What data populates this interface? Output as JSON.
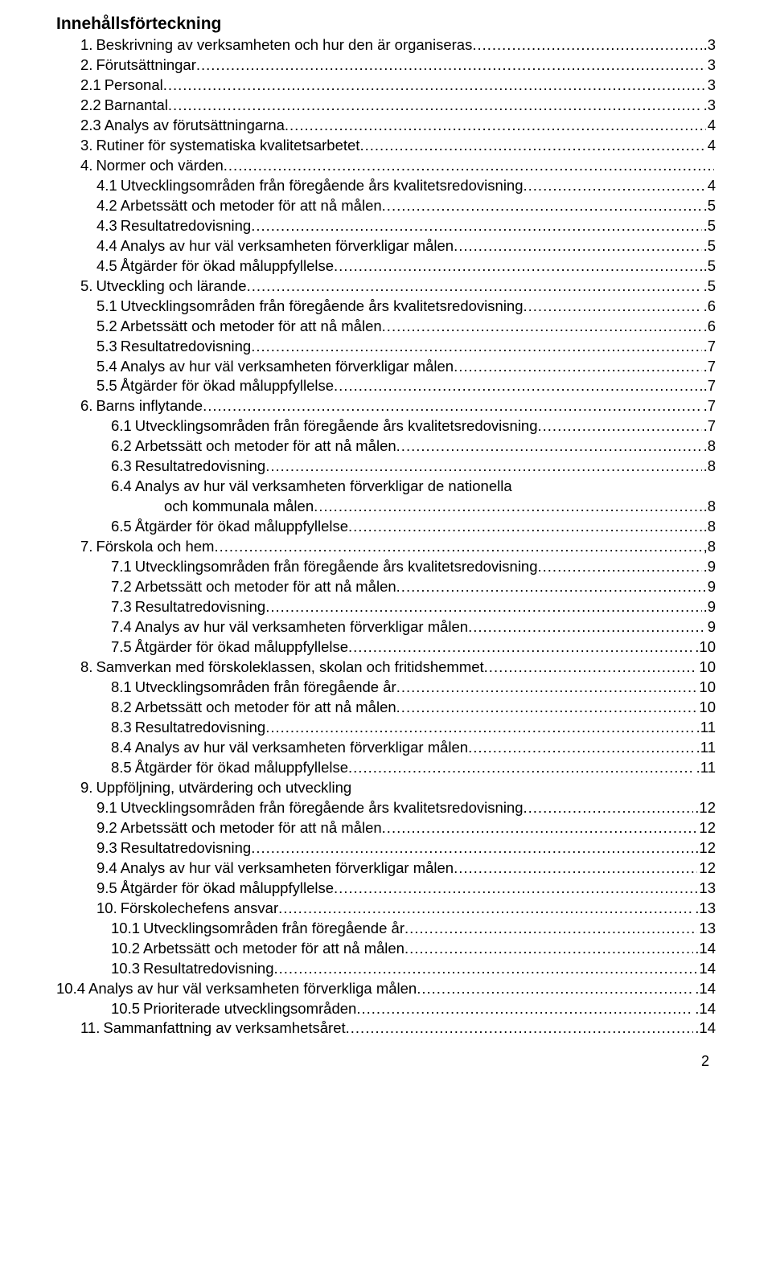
{
  "title": "Innehållsförteckning",
  "page_number": "2",
  "dots_char": ".",
  "toc": [
    {
      "num": "1.",
      "label": "Beskrivning av verksamheten och hur den är organiseras",
      "page": ".3",
      "indent": 1,
      "dotlen": 8
    },
    {
      "num": "2.",
      "label": "Förutsättningar",
      "page": "3",
      "indent": 1,
      "dotlen": 60
    },
    {
      "num": "2.1",
      "label": "Personal",
      "page": "3",
      "indent": 1,
      "dotlen": 66
    },
    {
      "num": "2.2",
      "label": "Barnantal",
      "page": ".3",
      "indent": 1,
      "dotlen": 64
    },
    {
      "num": "2.3",
      "label": "Analys av förutsättningarna",
      "page": "4",
      "indent": 1,
      "dotlen": 44
    },
    {
      "num": "3.",
      "label": "Rutiner för systematiska kvalitetsarbetet",
      "page": "4",
      "indent": 1,
      "dotlen": 30
    },
    {
      "num": "4.",
      "label": "Normer och värden",
      "page": "",
      "indent": 1,
      "dotlen": 3
    },
    {
      "num": "4.1",
      "label": "Utvecklingsområden från föregående års kvalitetsredovisning",
      "page": " 4",
      "indent": 2,
      "dotlen": 3
    },
    {
      "num": "4.2",
      "label": "Arbetssätt och metoder för att nå målen",
      "page": ".5",
      "indent": 2,
      "dotlen": 26
    },
    {
      "num": "4.3",
      "label": "Resultatredovisning",
      "page": ".5",
      "indent": 2,
      "dotlen": 50
    },
    {
      "num": "4.4",
      "label": "Analys av hur väl verksamheten förverkligar målen",
      "page": ".5",
      "indent": 2,
      "dotlen": 14
    },
    {
      "num": "4.5",
      "label": "Åtgärder för ökad måluppfyllelse",
      "page": ".5",
      "indent": 2,
      "dotlen": 34
    },
    {
      "num": "5.",
      "label": "Utveckling och lärande",
      "page": ".5",
      "indent": 1,
      "dotlen": 50
    },
    {
      "num": "5.1",
      "label": "Utvecklingsområden från föregående års kvalitetsredovisning",
      "page": ".6",
      "indent": 2,
      "dotlen": 3
    },
    {
      "num": "5.2",
      "label": "Arbetssätt och metoder för att nå målen",
      "page": ".6",
      "indent": 2,
      "dotlen": 26
    },
    {
      "num": "5.3",
      "label": "Resultatredovisning",
      "page": ".7",
      "indent": 2,
      "dotlen": 50
    },
    {
      "num": "5.4",
      "label": "Analys av hur väl verksamheten förverkligar målen",
      "page": ".7",
      "indent": 2,
      "dotlen": 14
    },
    {
      "num": "5.5",
      "label": "Åtgärder för ökad måluppfyllelse",
      "page": ".7",
      "indent": 2,
      "dotlen": 34
    },
    {
      "num": "6.",
      "label": "Barns inflytande",
      "page": ".7",
      "indent": 1,
      "dotlen": 58
    },
    {
      "num": "6.1",
      "label": "Utvecklingsområden från föregående års kvalitetsredovisning",
      "page": ".7",
      "indent": 3,
      "dotlen": 2
    },
    {
      "num": "6.2",
      "label": "Arbetssätt och metoder för att nå målen",
      "page": ".8",
      "indent": 3,
      "dotlen": 24
    },
    {
      "num": "6.3",
      "label": "Resultatredovisning",
      "page": ".8",
      "indent": 3,
      "dotlen": 48
    },
    {
      "num": "6.4",
      "label": "Analys av hur väl verksamheten förverkligar de nationella",
      "page": "",
      "indent": 3,
      "dotlen": 0
    },
    {
      "num": "",
      "label": "och kommunala målen",
      "page": ".8",
      "indent": -1,
      "dotlen": 40,
      "continuation": true
    },
    {
      "num": "6.5",
      "label": "Åtgärder för ökad måluppfyllelse",
      "page": ".8",
      "indent": 3,
      "dotlen": 32
    },
    {
      "num": "7.",
      "label": "Förskola och hem",
      "page": ",8",
      "indent": 1,
      "dotlen": 56
    },
    {
      "num": "7.1",
      "label": "Utvecklingsområden från föregående års kvalitetsredovisning",
      "page": ".9",
      "indent": 3,
      "dotlen": 2
    },
    {
      "num": "7.2",
      "label": "Arbetssätt och metoder för att nå målen",
      "page": "9",
      "indent": 3,
      "dotlen": 24
    },
    {
      "num": "7.3",
      "label": "Resultatredovisning",
      "page": ".9",
      "indent": 3,
      "dotlen": 48
    },
    {
      "num": "7.4",
      "label": "Analys av hur väl verksamheten förverkligar målen",
      "page": "9",
      "indent": 3,
      "dotlen": 12
    },
    {
      "num": "7.5",
      "label": "Åtgärder för ökad måluppfyllelse",
      "page": ".10",
      "indent": 3,
      "dotlen": 30
    },
    {
      "num": "8.",
      "label": "Samverkan med förskoleklassen, skolan och fritidshemmet",
      "page": "10",
      "indent": 1,
      "dotlen": 8
    },
    {
      "num": "8.1",
      "label": "Utvecklingsområden från föregående år",
      "page": "10",
      "indent": 3,
      "dotlen": 24
    },
    {
      "num": "8.2",
      "label": "Arbetssätt och metoder för att nå målen",
      "page": "10",
      "indent": 3,
      "dotlen": 22
    },
    {
      "num": "8.3",
      "label": "Resultatredovisning",
      "page": ".11",
      "indent": 3,
      "dotlen": 46
    },
    {
      "num": "8.4",
      "label": "Analys av hur väl verksamheten förverkligar målen",
      "page": ".11",
      "indent": 3,
      "dotlen": 10
    },
    {
      "num": "8.5",
      "label": "Åtgärder för ökad måluppfyllelse",
      "page": ".11",
      "indent": 3,
      "dotlen": 30
    },
    {
      "num": "9.",
      "label": "Uppföljning, utvärdering och utveckling",
      "page": "",
      "indent": 1,
      "dotlen": 0
    },
    {
      "num": "9.1",
      "label": "Utvecklingsområden från föregående års kvalitetsredovisning",
      "page": ".12",
      "indent": 2,
      "dotlen": 2
    },
    {
      "num": "9.2",
      "label": "Arbetssätt och metoder för att nå målen",
      "page": "12",
      "indent": 2,
      "dotlen": 24
    },
    {
      "num": "9.3",
      "label": "Resultatredovisning",
      "page": ".12",
      "indent": 2,
      "dotlen": 48
    },
    {
      "num": "9.4",
      "label": "Analys av hur väl verksamheten förverkligar målen",
      "page": "12",
      "indent": 2,
      "dotlen": 12
    },
    {
      "num": "9.5",
      "label": "Åtgärder för ökad måluppfyllelse",
      "page": "13",
      "indent": 2,
      "dotlen": 32
    },
    {
      "num": "10.",
      "label": "Förskolechefens ansvar",
      "page": ".13",
      "indent": 2,
      "dotlen": 44
    },
    {
      "num": "10.1",
      "label": "Utvecklingsområden från föregående år",
      "page": "13",
      "indent": 3,
      "dotlen": 22
    },
    {
      "num": "10.2",
      "label": "Arbetssätt och metoder för att nå målen",
      "page": ".14",
      "indent": 3,
      "dotlen": 20
    },
    {
      "num": "10.3",
      "label": "Resultatredovisning",
      "page": "14",
      "indent": 3,
      "dotlen": 46
    },
    {
      "num": "10.4",
      "label": "Analys av hur väl verksamheten förverkliga målen",
      "page": ".14",
      "indent": 0,
      "dotlen": 16
    },
    {
      "num": "10.5",
      "label": "Prioriterade utvecklingsområden",
      "page": ".14",
      "indent": 3,
      "dotlen": 30
    },
    {
      "num": "11.",
      "label": "Sammanfattning av verksamhetsåret",
      "page": ".14",
      "indent": 1,
      "dotlen": 30
    }
  ]
}
